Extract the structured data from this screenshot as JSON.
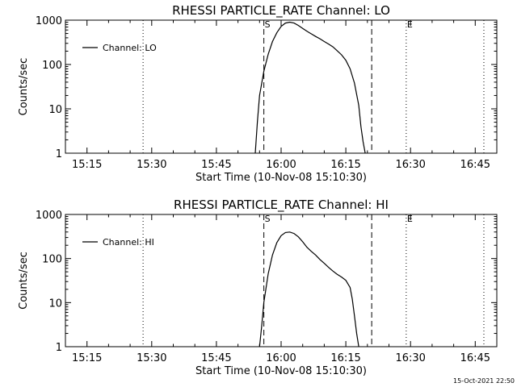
{
  "chart_data": [
    {
      "type": "line",
      "title": "RHESSI PARTICLE_RATE Channel: LO",
      "xlabel": "Start Time (10-Nov-08 15:10:30)",
      "ylabel": "Counts/sec",
      "yscale": "log",
      "ylim": [
        1,
        1000
      ],
      "y_ticks": [
        "1",
        "10",
        "100",
        "1000"
      ],
      "xlim": [
        "15:10",
        "16:50"
      ],
      "x_ticks": [
        "15:15",
        "15:30",
        "15:45",
        "16:00",
        "16:15",
        "16:30",
        "16:45"
      ],
      "legend": {
        "position": "top-left",
        "entries": [
          "Channel: LO"
        ]
      },
      "series": [
        {
          "name": "Channel: LO",
          "x": [
            "15:54",
            "15:54:30",
            "15:55",
            "15:56",
            "15:57",
            "15:58",
            "15:59",
            "16:00",
            "16:01",
            "16:02",
            "16:03",
            "16:04",
            "16:05",
            "16:06",
            "16:07",
            "16:08",
            "16:09",
            "16:10",
            "16:11",
            "16:12",
            "16:13",
            "16:14",
            "16:15",
            "16:16",
            "16:17",
            "16:18",
            "16:18:30",
            "16:19",
            "16:19:30"
          ],
          "y": [
            1,
            5,
            20,
            70,
            170,
            330,
            520,
            720,
            860,
            900,
            860,
            760,
            650,
            560,
            490,
            430,
            380,
            330,
            290,
            250,
            205,
            165,
            125,
            80,
            38,
            12,
            4,
            1.8,
            1
          ]
        }
      ],
      "vlines": [
        {
          "x": "15:28",
          "style": "dotted"
        },
        {
          "x": "15:56",
          "style": "dashed",
          "label": "S"
        },
        {
          "x": "16:21",
          "style": "dashed"
        },
        {
          "x": "16:29",
          "style": "dotted",
          "label": "E"
        },
        {
          "x": "16:47",
          "style": "dotted"
        }
      ]
    },
    {
      "type": "line",
      "title": "RHESSI PARTICLE_RATE Channel: HI",
      "xlabel": "Start Time (10-Nov-08 15:10:30)",
      "ylabel": "Counts/sec",
      "yscale": "log",
      "ylim": [
        1,
        1000
      ],
      "y_ticks": [
        "1",
        "10",
        "100",
        "1000"
      ],
      "xlim": [
        "15:10",
        "16:50"
      ],
      "x_ticks": [
        "15:15",
        "15:30",
        "15:45",
        "16:00",
        "16:15",
        "16:30",
        "16:45"
      ],
      "legend": {
        "position": "top-left",
        "entries": [
          "Channel: HI"
        ]
      },
      "series": [
        {
          "name": "Channel: HI",
          "x": [
            "15:55",
            "15:55:30",
            "15:56",
            "15:57",
            "15:58",
            "15:59",
            "16:00",
            "16:01",
            "16:02",
            "16:03",
            "16:04",
            "16:05",
            "16:06",
            "16:07",
            "16:08",
            "16:09",
            "16:10",
            "16:11",
            "16:12",
            "16:13",
            "16:14",
            "16:15",
            "16:16",
            "16:16:30",
            "16:17",
            "16:17:30",
            "16:18"
          ],
          "y": [
            1,
            3,
            10,
            45,
            120,
            230,
            330,
            390,
            400,
            370,
            310,
            240,
            180,
            145,
            120,
            95,
            78,
            63,
            52,
            44,
            38,
            32,
            22,
            12,
            5,
            2,
            1
          ]
        }
      ],
      "vlines": [
        {
          "x": "15:28",
          "style": "dotted"
        },
        {
          "x": "15:56",
          "style": "dashed",
          "label": "S"
        },
        {
          "x": "16:21",
          "style": "dashed"
        },
        {
          "x": "16:29",
          "style": "dotted",
          "label": "E"
        },
        {
          "x": "16:47",
          "style": "dotted"
        }
      ]
    }
  ],
  "footer": {
    "timestamp": "15-Oct-2021 22:50"
  }
}
